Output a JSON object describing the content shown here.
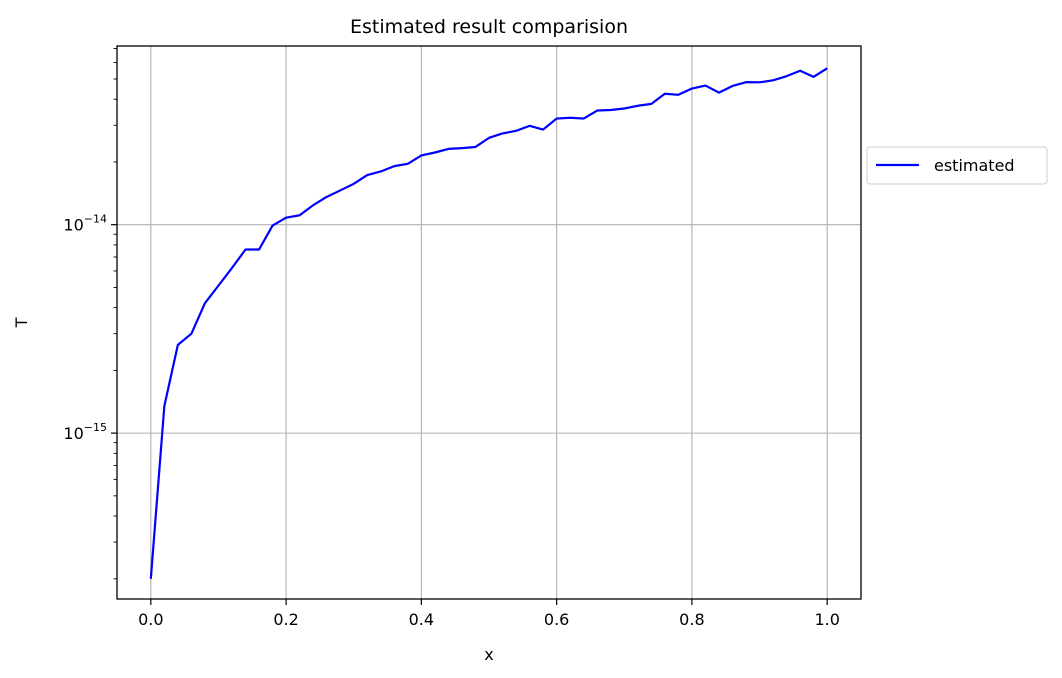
{
  "chart_data": {
    "type": "line",
    "title": "Estimated result comparision",
    "xlabel": "x",
    "ylabel": "T",
    "xlim": [
      -0.05,
      1.05
    ],
    "ylim": [
      1.6e-16,
      7.2e-14
    ],
    "yscale": "log",
    "grid": true,
    "legend_position": "right-outside",
    "x_ticks": [
      {
        "value": 0.0,
        "label": "0.0"
      },
      {
        "value": 0.2,
        "label": "0.2"
      },
      {
        "value": 0.4,
        "label": "0.4"
      },
      {
        "value": 0.6,
        "label": "0.6"
      },
      {
        "value": 0.8,
        "label": "0.8"
      },
      {
        "value": 1.0,
        "label": "1.0"
      }
    ],
    "y_ticks": [
      {
        "value": 1e-15,
        "base": "10",
        "exponent": "−15"
      },
      {
        "value": 1e-14,
        "base": "10",
        "exponent": "−14"
      }
    ],
    "x": [
      0.0,
      0.02,
      0.04,
      0.06,
      0.08,
      0.1,
      0.12,
      0.14,
      0.16,
      0.18,
      0.2,
      0.22,
      0.24,
      0.26,
      0.28,
      0.3,
      0.32,
      0.34,
      0.36,
      0.38,
      0.4,
      0.42,
      0.44,
      0.46,
      0.48,
      0.5,
      0.52,
      0.54,
      0.56,
      0.58,
      0.6,
      0.62,
      0.64,
      0.66,
      0.68,
      0.7,
      0.72,
      0.74,
      0.76,
      0.78,
      0.8,
      0.82,
      0.84,
      0.86,
      0.88,
      0.9,
      0.92,
      0.94,
      0.96,
      0.98,
      1.0
    ],
    "series": [
      {
        "name": "estimated",
        "color": "#0000ff",
        "values": [
          2e-16,
          1.35e-15,
          2.65e-15,
          3e-15,
          4.2e-15,
          5.1e-15,
          6.2e-15,
          7.6e-15,
          7.6e-15,
          9.9e-15,
          1.08e-14,
          1.11e-14,
          1.24e-14,
          1.36e-14,
          1.46e-14,
          1.57e-14,
          1.73e-14,
          1.8e-14,
          1.91e-14,
          1.96e-14,
          2.15e-14,
          2.22e-14,
          2.31e-14,
          2.33e-14,
          2.36e-14,
          2.61e-14,
          2.74e-14,
          2.82e-14,
          2.98e-14,
          2.86e-14,
          3.23e-14,
          3.26e-14,
          3.23e-14,
          3.53e-14,
          3.55e-14,
          3.61e-14,
          3.72e-14,
          3.8e-14,
          4.25e-14,
          4.2e-14,
          4.5e-14,
          4.65e-14,
          4.3e-14,
          4.63e-14,
          4.83e-14,
          4.82e-14,
          4.93e-14,
          5.16e-14,
          5.48e-14,
          5.12e-14,
          5.63e-14
        ]
      }
    ]
  }
}
